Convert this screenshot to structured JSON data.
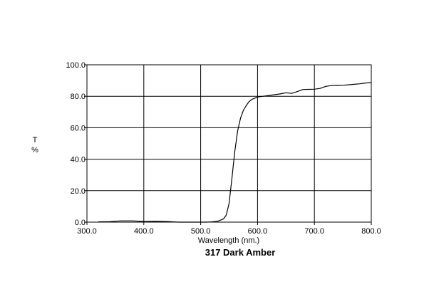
{
  "chart_data": {
    "type": "line",
    "title": "317 Dark Amber",
    "xlabel": "Wavelength (nm.)",
    "ylabel_lines": [
      "T",
      "%"
    ],
    "xlim": [
      300,
      800
    ],
    "ylim": [
      0,
      100
    ],
    "grid": true,
    "legend": "none",
    "x_ticks": [
      "300.0",
      "400.0",
      "500.0",
      "600.0",
      "700.0",
      "800.0"
    ],
    "y_ticks": [
      "0.0",
      "20.0",
      "40.0",
      "60.0",
      "80.0",
      "100.0"
    ],
    "series": [
      {
        "color": "#000000",
        "x": [
          320,
          340,
          360,
          380,
          400,
          420,
          440,
          460,
          480,
          500,
          510,
          520,
          530,
          540,
          545,
          550,
          555,
          560,
          565,
          570,
          575,
          580,
          585,
          590,
          600,
          610,
          620,
          630,
          640,
          650,
          660,
          670,
          680,
          690,
          700,
          710,
          720,
          730,
          740,
          750,
          760,
          770,
          780,
          790,
          800
        ],
        "y": [
          0.2,
          0.3,
          0.8,
          0.8,
          0.4,
          0.5,
          0.4,
          0.0,
          0.0,
          0.0,
          0.0,
          0.2,
          0.6,
          2.0,
          4.5,
          12.0,
          28.0,
          45.0,
          58.0,
          66.0,
          71.0,
          74.0,
          76.5,
          78.0,
          79.5,
          80.0,
          80.5,
          81.0,
          81.5,
          82.2,
          81.8,
          83.0,
          84.3,
          84.4,
          84.5,
          85.0,
          86.3,
          86.8,
          86.9,
          87.0,
          87.3,
          87.6,
          87.9,
          88.4,
          88.8
        ]
      }
    ]
  }
}
